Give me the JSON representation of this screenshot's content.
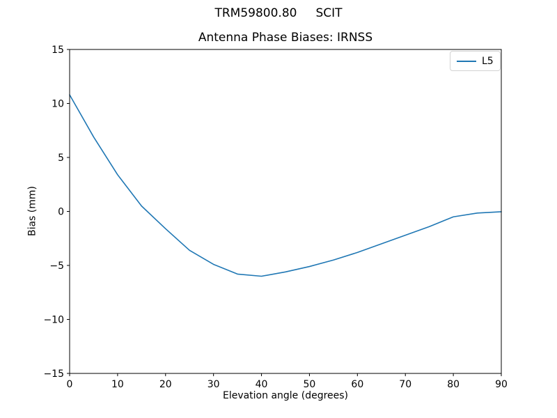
{
  "figure": {
    "suptitle": "TRM59800.80     SCIT"
  },
  "chart_data": {
    "type": "line",
    "title": "Antenna Phase Biases: IRNSS",
    "xlabel": "Elevation angle (degrees)",
    "ylabel": "Bias (mm)",
    "xlim": [
      0,
      90
    ],
    "ylim": [
      -15,
      15
    ],
    "x_ticks": [
      0,
      10,
      20,
      30,
      40,
      50,
      60,
      70,
      80,
      90
    ],
    "x_tick_labels": [
      "0",
      "10",
      "20",
      "30",
      "40",
      "50",
      "60",
      "70",
      "80",
      "90"
    ],
    "y_ticks": [
      15,
      10,
      5,
      0,
      -5,
      -10,
      -15
    ],
    "y_tick_labels": [
      "15",
      "10",
      "5",
      "0",
      "−5",
      "−10",
      "−15"
    ],
    "grid": false,
    "legend_position": "upper right",
    "x": [
      0,
      5,
      10,
      15,
      20,
      25,
      30,
      35,
      40,
      45,
      50,
      55,
      60,
      65,
      70,
      75,
      80,
      85,
      90
    ],
    "series": [
      {
        "name": "L5",
        "color": "#1f77b4",
        "values": [
          10.8,
          6.9,
          3.4,
          0.5,
          -1.6,
          -3.6,
          -4.9,
          -5.8,
          -6.0,
          -5.6,
          -5.1,
          -4.5,
          -3.8,
          -3.0,
          -2.2,
          -1.4,
          -0.5,
          -0.15,
          -0.03
        ]
      }
    ],
    "axis_color": "#000000",
    "background_color": "#ffffff"
  }
}
